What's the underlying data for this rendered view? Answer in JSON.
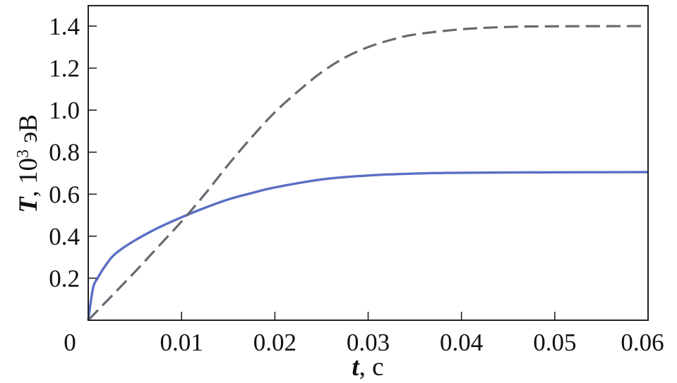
{
  "chart_data": {
    "type": "line",
    "x_axis": {
      "label_var": "t",
      "label_unit": ", с",
      "range": [
        0,
        0.06
      ],
      "ticks": [
        0,
        0.01,
        0.02,
        0.03,
        0.04,
        0.05,
        0.06
      ],
      "tick_labels": [
        "0",
        "0.01",
        "0.02",
        "0.03",
        "0.04",
        "0.05",
        "0.06"
      ]
    },
    "y_axis": {
      "label_var": "T",
      "label_text": ", 10",
      "label_sup": "3",
      "label_unit": " эВ",
      "range": [
        0,
        1.5
      ],
      "ticks": [
        0.2,
        0.4,
        0.6,
        0.8,
        1.0,
        1.2,
        1.4
      ],
      "tick_labels": [
        "0.2",
        "0.4",
        "0.6",
        "0.8",
        "1.0",
        "1.2",
        "1.4"
      ]
    },
    "grid": false,
    "legend": "none",
    "series": [
      {
        "style": "solid",
        "color": "#5a6fc4",
        "points": [
          [
            0,
            0
          ],
          [
            0.0005,
            0.15
          ],
          [
            0.001,
            0.2
          ],
          [
            0.002,
            0.27
          ],
          [
            0.003,
            0.32
          ],
          [
            0.005,
            0.38
          ],
          [
            0.0075,
            0.44
          ],
          [
            0.01,
            0.49
          ],
          [
            0.0125,
            0.535
          ],
          [
            0.015,
            0.575
          ],
          [
            0.0175,
            0.605
          ],
          [
            0.02,
            0.632
          ],
          [
            0.025,
            0.67
          ],
          [
            0.03,
            0.689
          ],
          [
            0.035,
            0.698
          ],
          [
            0.04,
            0.702
          ],
          [
            0.05,
            0.704
          ],
          [
            0.06,
            0.705
          ]
        ]
      },
      {
        "style": "dashed",
        "color": "#666b70",
        "points": [
          [
            0,
            0
          ],
          [
            0.0025,
            0.115
          ],
          [
            0.005,
            0.23
          ],
          [
            0.0075,
            0.35
          ],
          [
            0.01,
            0.47
          ],
          [
            0.0125,
            0.6
          ],
          [
            0.015,
            0.74
          ],
          [
            0.0175,
            0.87
          ],
          [
            0.02,
            0.99
          ],
          [
            0.0225,
            1.09
          ],
          [
            0.025,
            1.18
          ],
          [
            0.0275,
            1.25
          ],
          [
            0.03,
            1.3
          ],
          [
            0.0325,
            1.335
          ],
          [
            0.035,
            1.36
          ],
          [
            0.04,
            1.385
          ],
          [
            0.045,
            1.396
          ],
          [
            0.05,
            1.399
          ],
          [
            0.06,
            1.4
          ]
        ]
      }
    ]
  }
}
